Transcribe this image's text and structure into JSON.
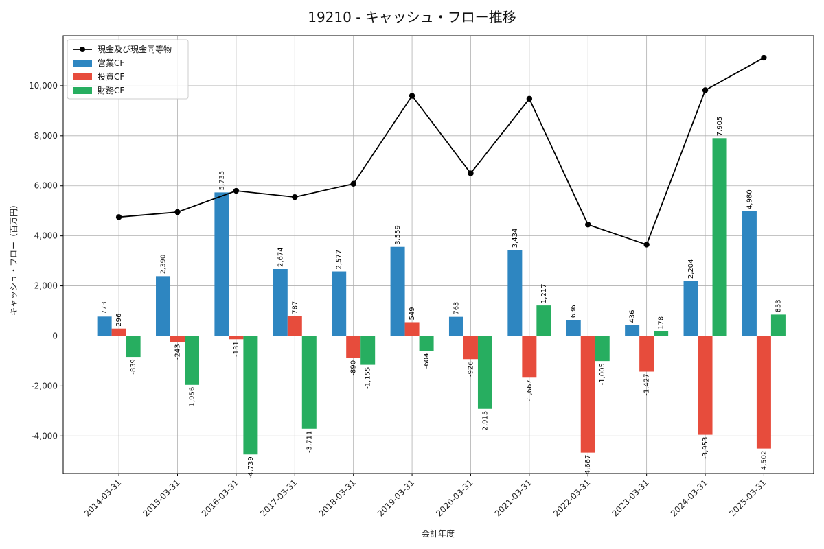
{
  "chart_data": {
    "type": "bar",
    "title": "19210 - キャッシュ・フロー推移",
    "xlabel": "会計年度",
    "ylabel": "キャッシュ・フロー（百万円）",
    "categories": [
      "2014-03-31",
      "2015-03-31",
      "2016-03-31",
      "2017-03-31",
      "2018-03-31",
      "2019-03-31",
      "2020-03-31",
      "2021-03-31",
      "2022-03-31",
      "2023-03-31",
      "2024-03-31",
      "2025-03-31"
    ],
    "ylim": [
      -5500,
      12000
    ],
    "yticks": [
      -4000,
      -2000,
      0,
      2000,
      4000,
      6000,
      8000,
      10000
    ],
    "ytick_labels": [
      "-4,000",
      "-2,000",
      "0",
      "2,000",
      "4,000",
      "6,000",
      "8,000",
      "10,000"
    ],
    "grid": true,
    "legend_position": "top-left",
    "series": [
      {
        "name": "営業CF",
        "kind": "bar",
        "color": "#2e86c1",
        "values": [
          773,
          2390,
          5735,
          2674,
          2577,
          3559,
          763,
          3434,
          636,
          436,
          2204,
          4980
        ],
        "labels": [
          "773",
          "2,390",
          "5,735",
          "2,674",
          "2,577",
          "3,559",
          "763",
          "3,434",
          "636",
          "436",
          "2,204",
          "4,980"
        ]
      },
      {
        "name": "投資CF",
        "kind": "bar",
        "color": "#e74c3c",
        "values": [
          296,
          -243,
          -131,
          787,
          -890,
          549,
          -926,
          -1667,
          -4667,
          -1427,
          -3953,
          -4502
        ],
        "labels": [
          "296",
          "-243",
          "-131",
          "787",
          "-890",
          "549",
          "-926",
          "-1,667",
          "-4,667",
          "-1,427",
          "-3,953",
          "-4,502"
        ]
      },
      {
        "name": "財務CF",
        "kind": "bar",
        "color": "#27ae60",
        "values": [
          -839,
          -1956,
          -4739,
          -3711,
          -1155,
          -604,
          -2915,
          1217,
          -1005,
          178,
          7905,
          853
        ],
        "labels": [
          "-839",
          "-1,956",
          "-4,739",
          "-3,711",
          "-1,155",
          "-604",
          "-2,915",
          "1,217",
          "-1,005",
          "178",
          "7,905",
          "853"
        ]
      },
      {
        "name": "現金及び現金同等物",
        "kind": "line",
        "color": "#000000",
        "values": [
          4750,
          4950,
          5800,
          5550,
          6080,
          9600,
          6500,
          9480,
          4450,
          3650,
          9820,
          11120
        ]
      }
    ]
  }
}
